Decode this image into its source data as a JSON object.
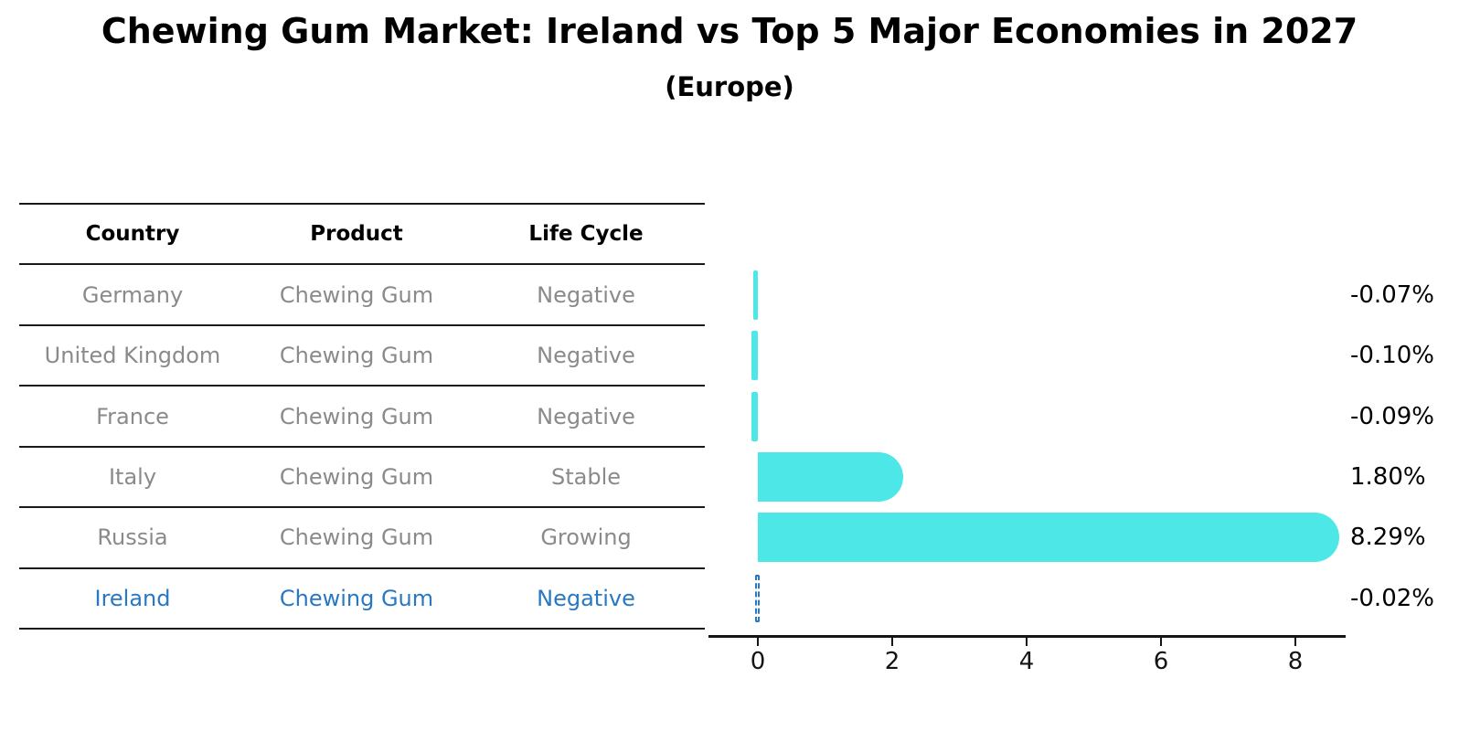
{
  "title": "Chewing Gum Market: Ireland vs Top 5 Major Economies in 2027",
  "subtitle": "(Europe)",
  "table": {
    "headers": [
      "Country",
      "Product",
      "Life Cycle"
    ],
    "rows": [
      {
        "country": "Germany",
        "product": "Chewing Gum",
        "life_cycle": "Negative",
        "highlight": false
      },
      {
        "country": "United Kingdom",
        "product": "Chewing Gum",
        "life_cycle": "Negative",
        "highlight": false
      },
      {
        "country": "France",
        "product": "Chewing Gum",
        "life_cycle": "Negative",
        "highlight": false
      },
      {
        "country": "Italy",
        "product": "Chewing Gum",
        "life_cycle": "Stable",
        "highlight": false
      },
      {
        "country": "Russia",
        "product": "Chewing Gum",
        "life_cycle": "Growing",
        "highlight": false
      },
      {
        "country": "Ireland",
        "product": "Chewing Gum",
        "life_cycle": "Negative",
        "highlight": true
      }
    ]
  },
  "chart_data": {
    "type": "bar",
    "orientation": "horizontal",
    "categories": [
      "Germany",
      "United Kingdom",
      "France",
      "Italy",
      "Russia",
      "Ireland"
    ],
    "values": [
      -0.07,
      -0.1,
      -0.09,
      1.8,
      8.29,
      -0.02
    ],
    "value_labels": [
      "-0.07%",
      "-0.10%",
      "-0.09%",
      "1.80%",
      "8.29%",
      "-0.02%"
    ],
    "x_ticks": [
      0,
      2,
      4,
      6,
      8
    ],
    "xlim": [
      -0.75,
      8.75
    ],
    "grid": false,
    "legend": "none",
    "bar_color": "#4DE7E7",
    "highlight_index": 5,
    "highlight_style": "dashed-outline",
    "highlight_color": "#2878c4",
    "text_gray": "#8a8a8a"
  }
}
